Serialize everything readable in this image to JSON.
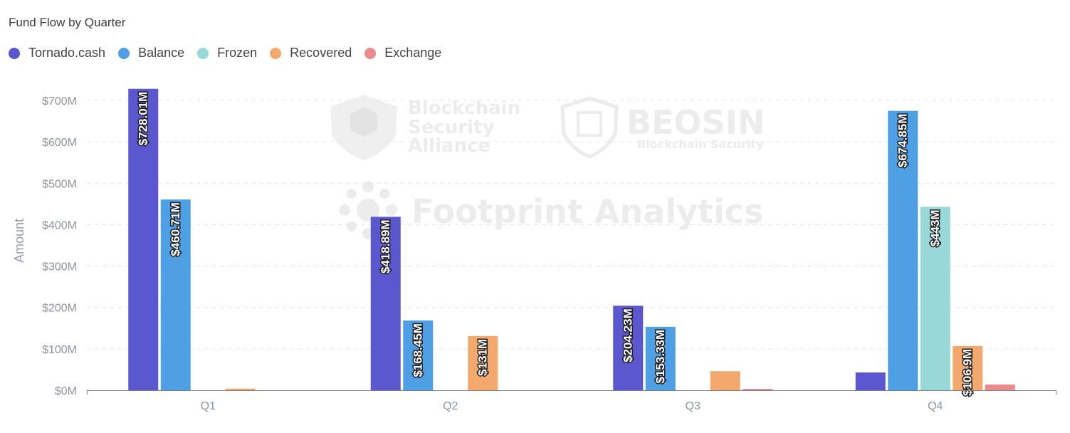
{
  "title": "Fund Flow by Quarter",
  "legend": [
    {
      "label": "Tornado.cash",
      "color": "#5a57cf"
    },
    {
      "label": "Balance",
      "color": "#4e9fe3"
    },
    {
      "label": "Frozen",
      "color": "#98d8d8"
    },
    {
      "label": "Recovered",
      "color": "#f3a86d"
    },
    {
      "label": "Exchange",
      "color": "#ea8c8c"
    }
  ],
  "watermarks": {
    "alliance": [
      "Blockchain",
      "Security",
      "Alliance"
    ],
    "beosin": "BEOSIN",
    "beosin_sub": "Blockchain Security",
    "footprint": "Footprint Analytics"
  },
  "chart_data": {
    "type": "bar",
    "title": "Fund Flow by Quarter",
    "xlabel": "",
    "ylabel": "Amount",
    "categories": [
      "Q1",
      "Q2",
      "Q3",
      "Q4"
    ],
    "ylim": [
      0,
      700
    ],
    "yticks": [
      "$0M",
      "$100M",
      "$200M",
      "$300M",
      "$400M",
      "$500M",
      "$600M",
      "$700M"
    ],
    "grid": true,
    "legend_position": "top-left",
    "series": [
      {
        "name": "Tornado.cash",
        "color": "#5a57cf",
        "values": [
          728.01,
          418.89,
          204.23,
          43
        ],
        "labels": [
          "$728.01M",
          "$418.89M",
          "$204.23M",
          ""
        ]
      },
      {
        "name": "Balance",
        "color": "#4e9fe3",
        "values": [
          460.71,
          168.45,
          153.33,
          674.85
        ],
        "labels": [
          "$460.71M",
          "$168.45M",
          "$153.33M",
          "$674.85M"
        ]
      },
      {
        "name": "Frozen",
        "color": "#98d8d8",
        "values": [
          0,
          0,
          0,
          443
        ],
        "labels": [
          "",
          "",
          "",
          "$443M"
        ]
      },
      {
        "name": "Recovered",
        "color": "#f3a86d",
        "values": [
          4,
          131,
          46,
          106.9
        ],
        "labels": [
          "",
          "$131M",
          "",
          "$106.9M"
        ]
      },
      {
        "name": "Exchange",
        "color": "#ea8c8c",
        "values": [
          0,
          0,
          3,
          14
        ],
        "labels": [
          "",
          "",
          "",
          ""
        ]
      }
    ]
  }
}
